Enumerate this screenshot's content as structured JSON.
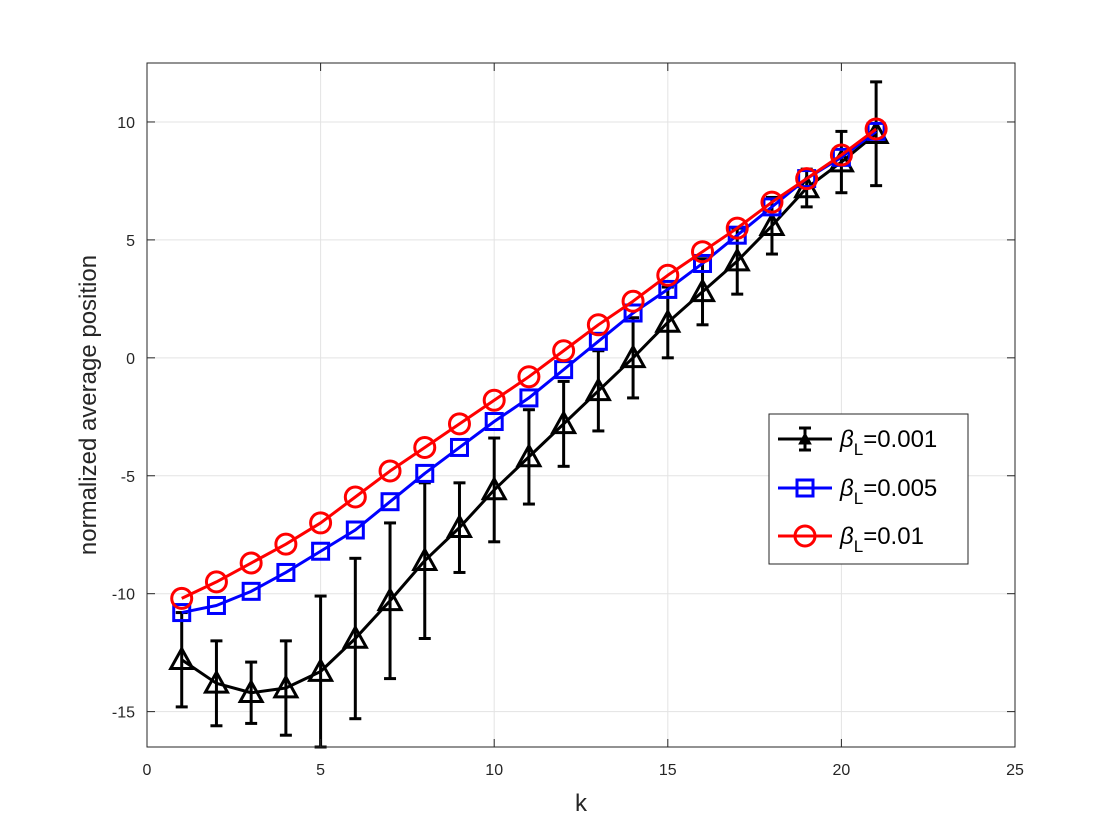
{
  "chart_data": {
    "type": "line",
    "xlabel": "k",
    "ylabel": "normalized average position",
    "xlim": [
      0,
      25
    ],
    "ylim": [
      -16.5,
      12.5
    ],
    "xticks": [
      0,
      5,
      10,
      15,
      20,
      25
    ],
    "yticks": [
      -15,
      -10,
      -5,
      0,
      5,
      10
    ],
    "xtick_labels": [
      "0",
      "5",
      "10",
      "15",
      "20",
      "25"
    ],
    "ytick_labels": [
      "-15",
      "-10",
      "-5",
      "0",
      "5",
      "10"
    ],
    "grid": true,
    "legend_position": "right",
    "x": [
      1,
      2,
      3,
      4,
      5,
      6,
      7,
      8,
      9,
      10,
      11,
      12,
      13,
      14,
      15,
      16,
      17,
      18,
      19,
      20,
      21
    ],
    "series": [
      {
        "legend_symbol": "β",
        "legend_subscript": "L",
        "legend_value": "=0.001",
        "color": "#000000",
        "marker": "triangle",
        "values": [
          -12.8,
          -13.8,
          -14.2,
          -14.0,
          -13.3,
          -11.9,
          -10.3,
          -8.6,
          -7.2,
          -5.6,
          -4.2,
          -2.8,
          -1.4,
          0.0,
          1.5,
          2.8,
          4.1,
          5.6,
          7.2,
          8.3,
          9.5
        ],
        "errors": [
          2.0,
          1.8,
          1.3,
          2.0,
          3.2,
          3.4,
          3.3,
          3.3,
          1.9,
          2.2,
          2.0,
          1.8,
          1.7,
          1.7,
          1.5,
          1.4,
          1.4,
          1.2,
          0.8,
          1.3,
          2.2
        ]
      },
      {
        "legend_symbol": "β",
        "legend_subscript": "L",
        "legend_value": "=0.005",
        "color": "#0000ff",
        "marker": "square",
        "values": [
          -10.8,
          -10.5,
          -9.9,
          -9.1,
          -8.2,
          -7.3,
          -6.1,
          -4.9,
          -3.8,
          -2.7,
          -1.7,
          -0.5,
          0.7,
          1.9,
          2.9,
          4.0,
          5.2,
          6.4,
          7.6,
          8.5,
          9.6
        ]
      },
      {
        "legend_symbol": "β",
        "legend_subscript": "L",
        "legend_value": "=0.01",
        "color": "#ff0000",
        "marker": "circle",
        "values": [
          -10.2,
          -9.5,
          -8.7,
          -7.9,
          -7.0,
          -5.9,
          -4.8,
          -3.8,
          -2.8,
          -1.8,
          -0.8,
          0.3,
          1.4,
          2.4,
          3.5,
          4.5,
          5.5,
          6.6,
          7.6,
          8.6,
          9.7
        ]
      }
    ]
  }
}
